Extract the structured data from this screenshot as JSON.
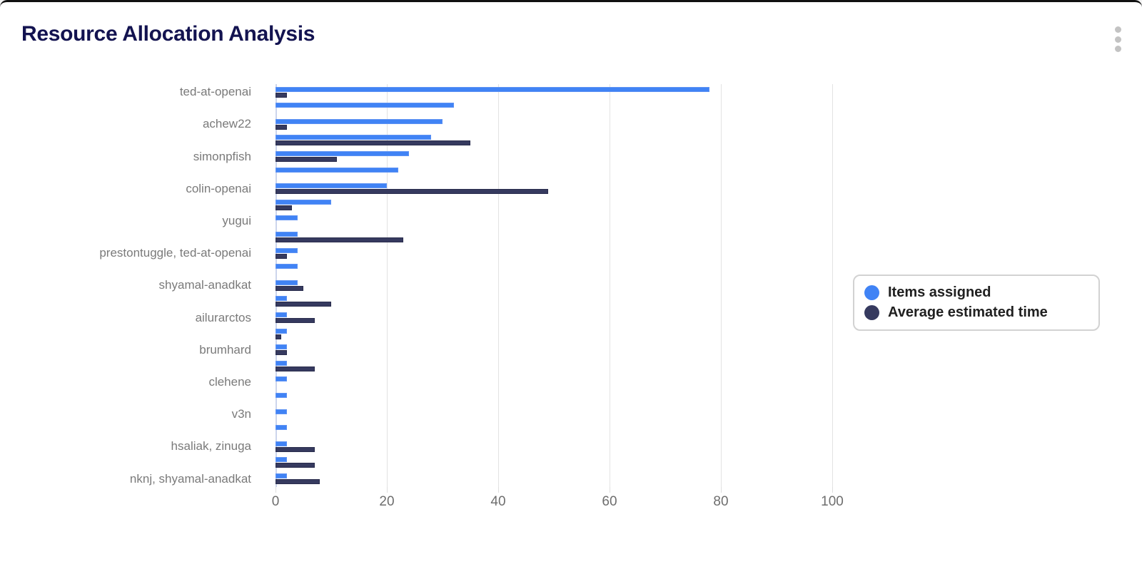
{
  "header": {
    "title": "Resource Allocation Analysis"
  },
  "menu": {
    "icon": "kebab-menu-icon"
  },
  "chart_data": {
    "type": "bar",
    "orientation": "horizontal",
    "title": "Resource Allocation Analysis",
    "xlabel": "",
    "ylabel": "",
    "xlim": [
      0,
      100
    ],
    "x_ticks": [
      0,
      20,
      40,
      60,
      80,
      100
    ],
    "grid": true,
    "legend_position": "right",
    "categories": [
      "ted-at-openai",
      "",
      "achew22",
      "",
      "simonpfish",
      "",
      "colin-openai",
      "",
      "yugui",
      "",
      "prestontuggle, ted-at-openai",
      "",
      "shyamal-anadkat",
      "",
      "ailurarctos",
      "",
      "brumhard",
      "",
      "clehene",
      "",
      "v3n",
      "",
      "hsaliak, zinuga",
      "",
      "nknj, shyamal-anadkat"
    ],
    "series": [
      {
        "name": "Items assigned",
        "color": "#4083f5",
        "values": [
          78,
          32,
          30,
          28,
          24,
          22,
          20,
          10,
          4,
          4,
          4,
          4,
          4,
          2,
          2,
          2,
          2,
          2,
          2,
          2,
          2,
          2,
          2,
          2,
          2
        ]
      },
      {
        "name": "Average estimated time",
        "color": "#363a5f",
        "values": [
          2,
          0,
          2,
          35,
          11,
          0,
          49,
          3,
          0,
          23,
          2,
          0,
          5,
          10,
          7,
          1,
          2,
          7,
          0,
          0,
          0,
          0,
          7,
          7,
          8
        ]
      }
    ]
  },
  "legend": {
    "items": [
      {
        "label": "Items assigned",
        "color": "#4083f5"
      },
      {
        "label": "Average estimated time",
        "color": "#363a5f"
      }
    ]
  }
}
